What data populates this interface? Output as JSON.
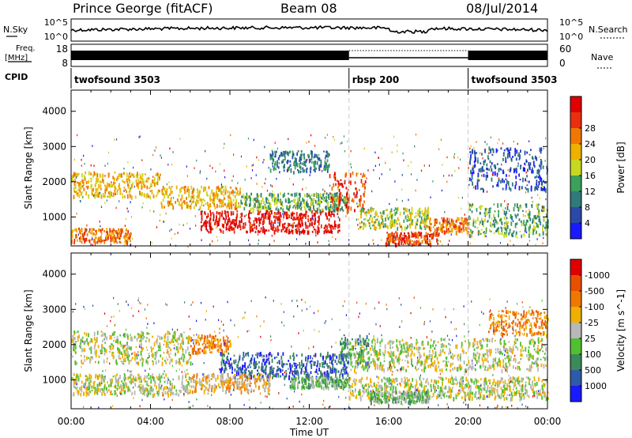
{
  "header": {
    "station": "Prince George (fitACF)",
    "beam": "Beam 08",
    "date": "08/Jul/2014"
  },
  "labels": {
    "nsky": "N.Sky",
    "nsearch": "N.Search",
    "freq_line1": "Freq.",
    "freq_line2": "[MHz]",
    "nave": "Nave",
    "cpid": "CPID"
  },
  "cpid_segments": [
    {
      "name": "twofsound 3503",
      "start_hour": 0,
      "end_hour": 14
    },
    {
      "name": "rbsp 200",
      "start_hour": 14,
      "end_hour": 20
    },
    {
      "name": "twofsound 3503",
      "start_hour": 20,
      "end_hour": 24
    }
  ],
  "noise_axis": {
    "left_ticks": [
      "10^5",
      "10^0"
    ],
    "right_ticks": [
      "10^5",
      "10^0"
    ]
  },
  "freq_axis": {
    "left_ticks": [
      "18",
      "8"
    ],
    "right_ticks": [
      "60",
      "0"
    ]
  },
  "chart_data": [
    {
      "type": "heatmap",
      "title": "",
      "xlabel": "Time UT",
      "ylabel": "Slant Range [km]",
      "xlim": [
        0,
        24
      ],
      "ylim": [
        180,
        4600
      ],
      "x_ticks": [
        "00:00",
        "04:00",
        "08:00",
        "12:00",
        "16:00",
        "20:00",
        "00:00"
      ],
      "y_ticks": [
        1000,
        2000,
        3000,
        4000
      ],
      "colorbar": {
        "label": "Power [dB]",
        "ticks": [
          4,
          8,
          12,
          16,
          20,
          24,
          28
        ],
        "colors": [
          "#1a1aff",
          "#2a4aa8",
          "#2f7a7a",
          "#3aa05a",
          "#c8d820",
          "#f0b000",
          "#f07800",
          "#e83010",
          "#e00000"
        ]
      },
      "bands": [
        {
          "start": 0,
          "end": 4.5,
          "range": [
            1600,
            2300
          ],
          "level": 5
        },
        {
          "start": 4.5,
          "end": 8.5,
          "range": [
            1300,
            1900
          ],
          "level": 5
        },
        {
          "start": 8.5,
          "end": 14,
          "range": [
            1200,
            1700
          ],
          "level": 3
        },
        {
          "start": 6.5,
          "end": 13.5,
          "range": [
            600,
            1200
          ],
          "level": 8
        },
        {
          "start": 13,
          "end": 14.8,
          "range": [
            1200,
            2300
          ],
          "level": 7
        },
        {
          "start": 14.5,
          "end": 18,
          "range": [
            700,
            1300
          ],
          "level": 4
        },
        {
          "start": 15.8,
          "end": 18.5,
          "range": [
            250,
            600
          ],
          "level": 7
        },
        {
          "start": 18,
          "end": 20,
          "range": [
            600,
            1000
          ],
          "level": 6
        },
        {
          "start": 20,
          "end": 24,
          "range": [
            500,
            1400
          ],
          "level": 3
        },
        {
          "start": 20,
          "end": 24,
          "range": [
            1800,
            3000
          ],
          "level": 1
        },
        {
          "start": 0,
          "end": 3,
          "range": [
            300,
            700
          ],
          "level": 6
        },
        {
          "start": 10,
          "end": 13,
          "range": [
            2300,
            2900
          ],
          "level": 2
        }
      ]
    },
    {
      "type": "heatmap",
      "title": "",
      "xlabel": "Time UT",
      "ylabel": "Slant Range [km]",
      "xlim": [
        0,
        24
      ],
      "ylim": [
        180,
        4600
      ],
      "x_ticks": [
        "00:00",
        "04:00",
        "08:00",
        "12:00",
        "16:00",
        "20:00",
        "00:00"
      ],
      "y_ticks": [
        1000,
        2000,
        3000,
        4000
      ],
      "colorbar": {
        "label": "Velocity [m s^-1]",
        "ticks": [
          "1000",
          "500",
          "100",
          "25",
          "-25",
          "-100",
          "-500",
          "-1000"
        ],
        "colors": [
          "#1a1aff",
          "#2f5aa8",
          "#3a8a5a",
          "#50c030",
          "#b8b8b8",
          "#f0b000",
          "#f07800",
          "#e85000",
          "#e00000"
        ]
      },
      "bands": [
        {
          "start": 0,
          "end": 6,
          "range": [
            1500,
            2400
          ],
          "level": 4
        },
        {
          "start": 0,
          "end": 6,
          "range": [
            600,
            1200
          ],
          "level": 4
        },
        {
          "start": 14,
          "end": 24,
          "range": [
            1300,
            2200
          ],
          "level": 4
        },
        {
          "start": 14,
          "end": 24,
          "range": [
            500,
            1100
          ],
          "level": 4
        },
        {
          "start": 7.5,
          "end": 14,
          "range": [
            1100,
            1800
          ],
          "level": 1
        },
        {
          "start": 13.5,
          "end": 15,
          "range": [
            1500,
            2300
          ],
          "level": 2
        },
        {
          "start": 6,
          "end": 10,
          "range": [
            700,
            1200
          ],
          "level": 5
        },
        {
          "start": 11,
          "end": 14,
          "range": [
            800,
            1100
          ],
          "level": 3
        },
        {
          "start": 15,
          "end": 18,
          "range": [
            400,
            700
          ],
          "level": 3
        },
        {
          "start": 21,
          "end": 24,
          "range": [
            2300,
            3000
          ],
          "level": 6
        },
        {
          "start": 6,
          "end": 8,
          "range": [
            1800,
            2300
          ],
          "level": 6
        }
      ]
    }
  ]
}
